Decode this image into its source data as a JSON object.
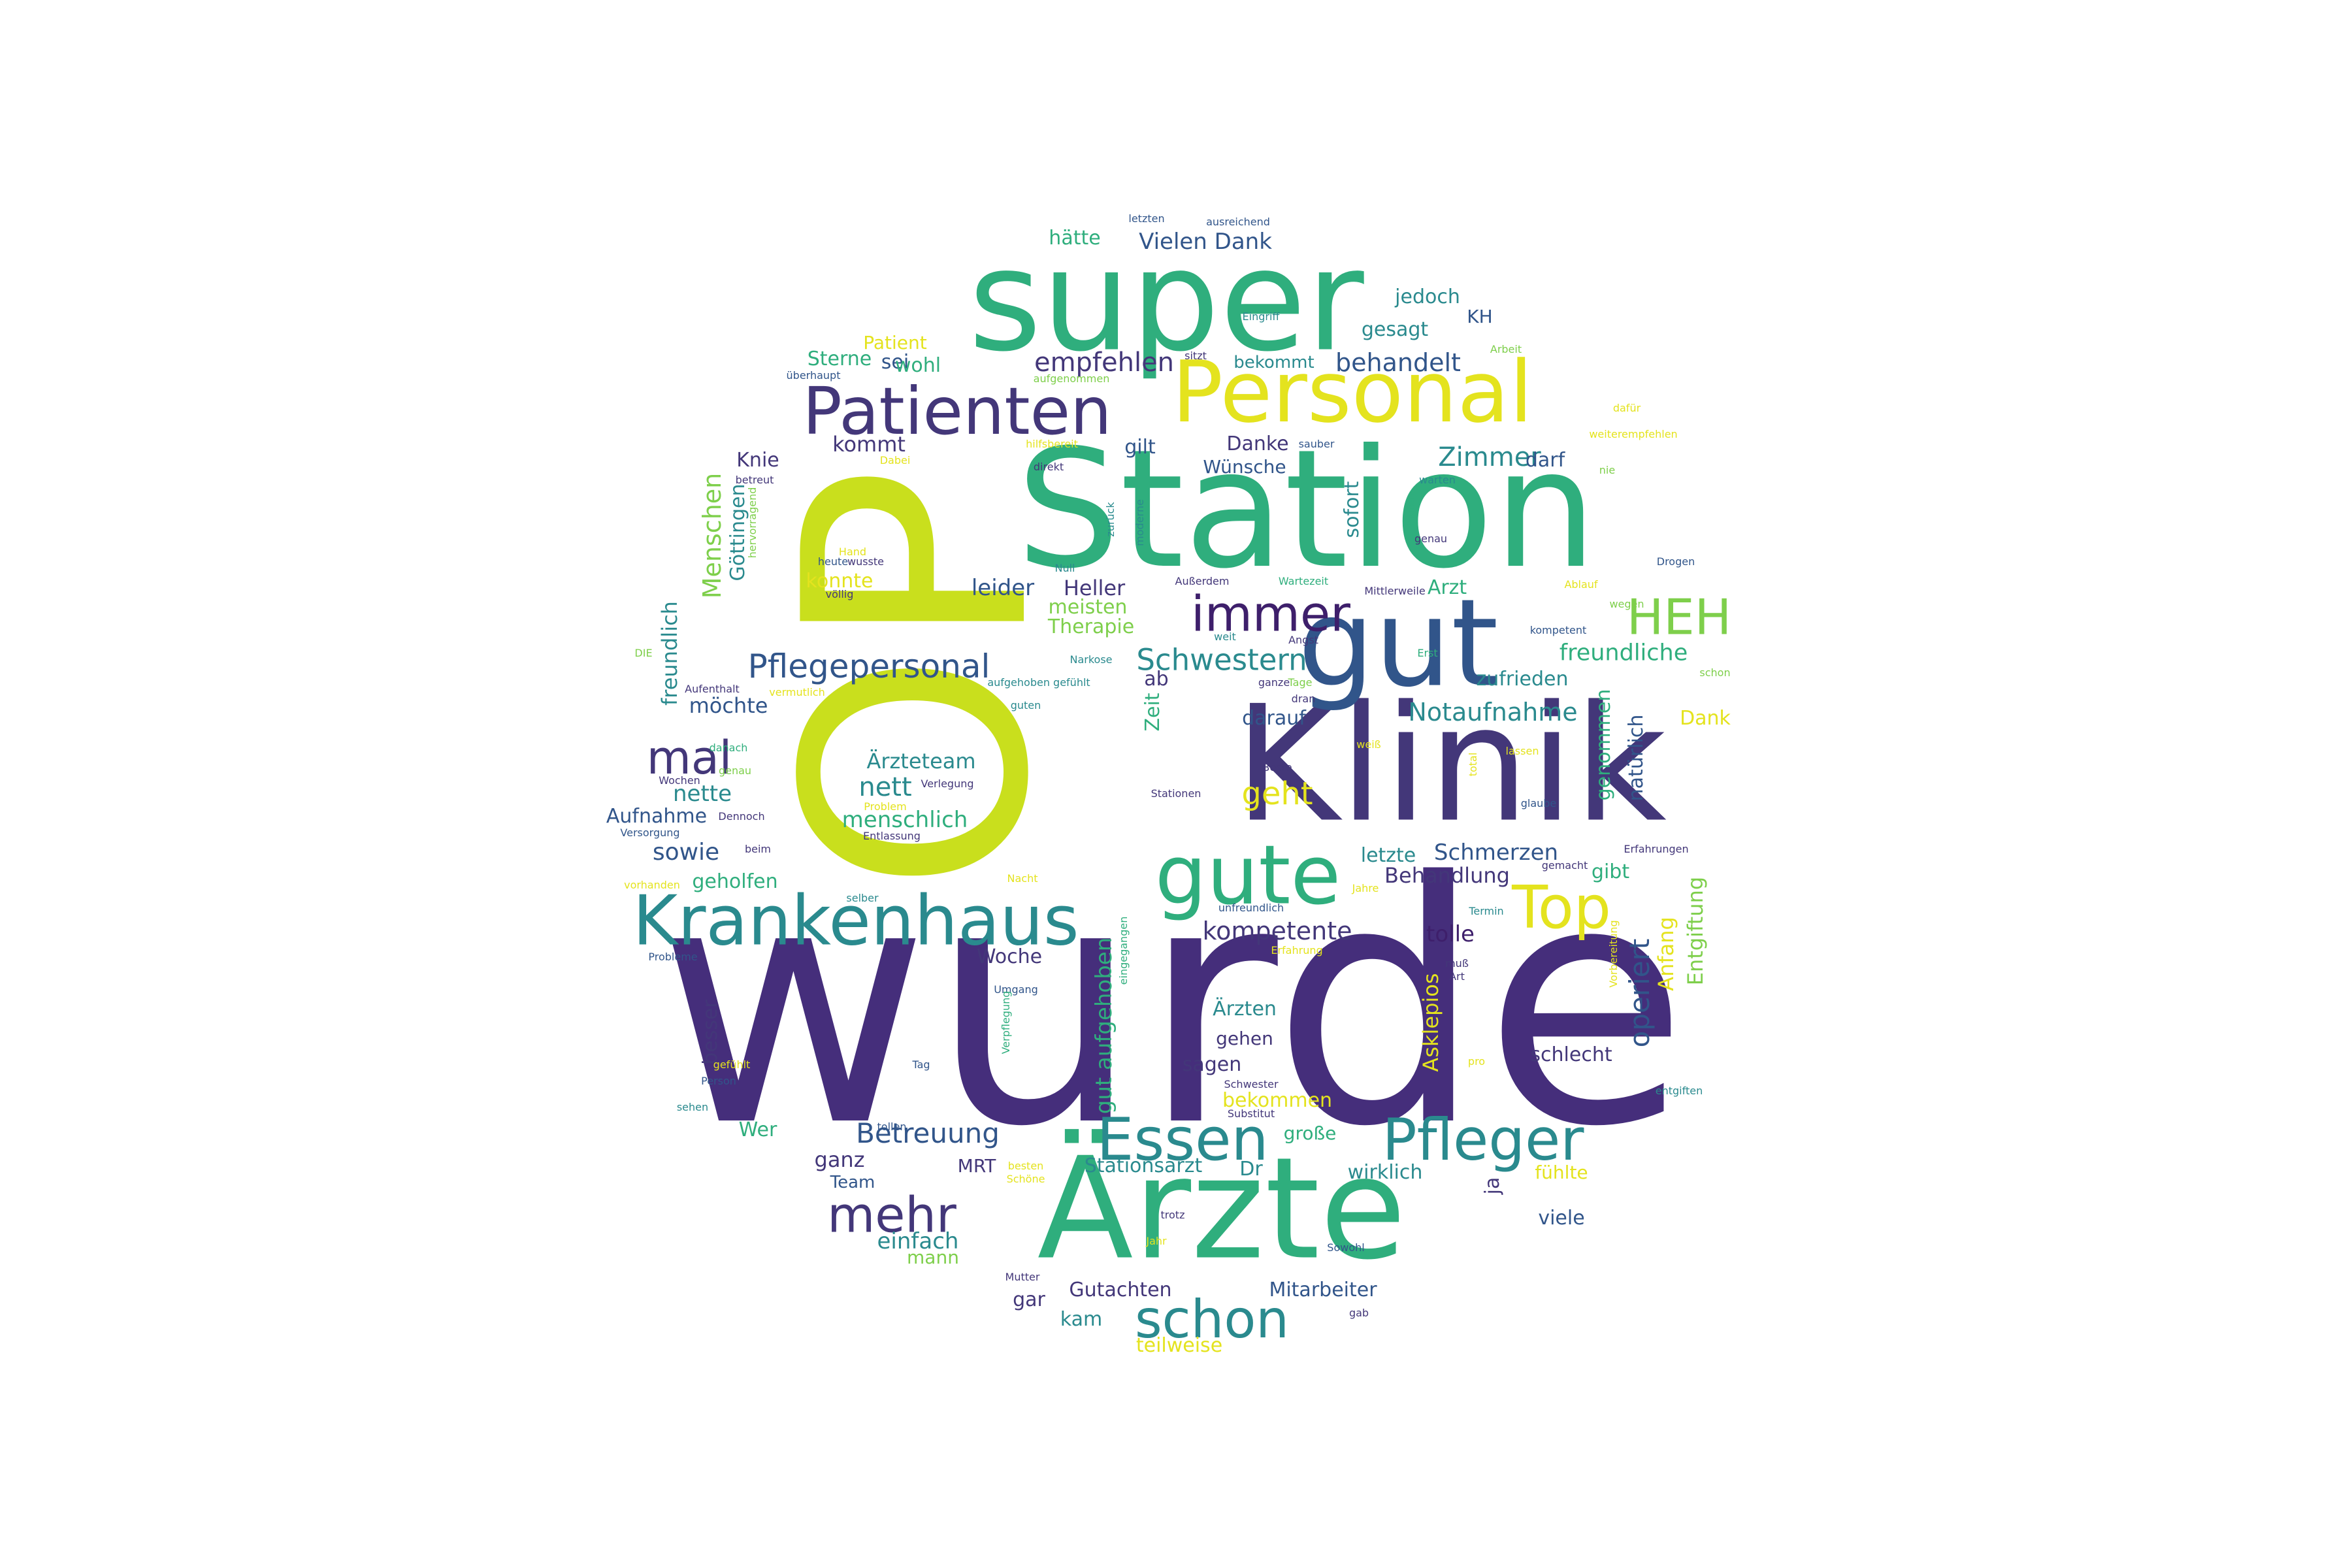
{
  "palette": {
    "indigo": "#46287a",
    "purple": "#3e2b7a",
    "slate": "#31558a",
    "teal": "#2a8a8e",
    "green": "#2fae7d",
    "lime": "#7ecf4b",
    "yellow": "#e4e31e",
    "chartreuse": "#c9df1d"
  },
  "words": [
    {
      "text": "wurde",
      "color": "#452e7b"
    },
    {
      "text": "OP",
      "color": "#c9df1d"
    },
    {
      "text": "Klinik",
      "color": "#433779"
    },
    {
      "text": "Station",
      "color": "#2fae7d"
    },
    {
      "text": "super",
      "color": "#2fae7d"
    },
    {
      "text": "Ärzte",
      "color": "#2fae7d"
    },
    {
      "text": "gut",
      "color": "#31558a"
    },
    {
      "text": "Personal",
      "color": "#e4e31e"
    },
    {
      "text": "Patienten",
      "color": "#433779"
    },
    {
      "text": "gute",
      "color": "#2fae7d"
    },
    {
      "text": "Krankenhaus",
      "color": "#2a8a8e"
    },
    {
      "text": "Essen",
      "color": "#2a8a8e"
    },
    {
      "text": "Pfleger",
      "color": "#2a8a8e"
    },
    {
      "text": "immer",
      "color": "#3e1f6b"
    },
    {
      "text": "HEH",
      "color": "#7ecf4b"
    },
    {
      "text": "mal",
      "color": "#433779"
    },
    {
      "text": "Top",
      "color": "#e4e31e"
    },
    {
      "text": "schon",
      "color": "#2a8a8e"
    },
    {
      "text": "mehr",
      "color": "#433779"
    },
    {
      "text": "Pflegepersonal",
      "color": "#31558a"
    },
    {
      "text": "Schwestern",
      "color": "#2a8a8e"
    },
    {
      "text": "empfehlen",
      "color": "#433779"
    },
    {
      "text": "behandelt",
      "color": "#31558a"
    },
    {
      "text": "Betreuung",
      "color": "#31558a"
    },
    {
      "text": "operiert",
      "color": "#31558a"
    },
    {
      "text": "Zimmer",
      "color": "#2a8a8e"
    },
    {
      "text": "geht",
      "color": "#e4e31e"
    },
    {
      "text": "nett",
      "color": "#2a8a8e"
    },
    {
      "text": "Notaufnahme",
      "color": "#2a8a8e"
    },
    {
      "text": "Menschen",
      "color": "#7ecf4b"
    },
    {
      "text": "kompetente",
      "color": "#433779"
    },
    {
      "text": "Vielen Dank",
      "color": "#31558a"
    },
    {
      "text": "freundliche",
      "color": "#2fae7d"
    },
    {
      "text": "menschlich",
      "color": "#2fae7d"
    },
    {
      "text": "Schmerzen",
      "color": "#31558a"
    },
    {
      "text": "Behandlung",
      "color": "#433779"
    },
    {
      "text": "Ärzteteam",
      "color": "#2a8a8e"
    },
    {
      "text": "gut aufgehoben",
      "color": "#2fae7d"
    },
    {
      "text": "freundlich",
      "color": "#2a8a8e"
    },
    {
      "text": "Göttingen",
      "color": "#2a8a8e"
    },
    {
      "text": "natürlich",
      "color": "#31558a"
    },
    {
      "text": "genommen",
      "color": "#2fae7d"
    },
    {
      "text": "zufrieden",
      "color": "#2a8a8e"
    },
    {
      "text": "Stationsarzt",
      "color": "#2a8a8e"
    },
    {
      "text": "Gutachten",
      "color": "#433779"
    },
    {
      "text": "Mitarbeiter",
      "color": "#31558a"
    },
    {
      "text": "teilweise",
      "color": "#e4e31e"
    },
    {
      "text": "wirklich",
      "color": "#2a8a8e"
    },
    {
      "text": "Asklepios",
      "color": "#e4e31e"
    },
    {
      "text": "Anfang",
      "color": "#e4e31e"
    },
    {
      "text": "Entgiftung",
      "color": "#7ecf4b"
    },
    {
      "text": "Aufnahme",
      "color": "#31558a"
    },
    {
      "text": "geholfen",
      "color": "#2fae7d"
    },
    {
      "text": "sowie",
      "color": "#31558a"
    },
    {
      "text": "nette",
      "color": "#2a8a8e"
    },
    {
      "text": "möchte",
      "color": "#31558a"
    },
    {
      "text": "leider",
      "color": "#31558a"
    },
    {
      "text": "Heller",
      "color": "#433779"
    },
    {
      "text": "meisten",
      "color": "#7ecf4b"
    },
    {
      "text": "Therapie",
      "color": "#7ecf4b"
    },
    {
      "text": "konnte",
      "color": "#e4e31e"
    },
    {
      "text": "Knie",
      "color": "#433779"
    },
    {
      "text": "kommt",
      "color": "#433779"
    },
    {
      "text": "gilt",
      "color": "#31558a"
    },
    {
      "text": "Danke",
      "color": "#433779"
    },
    {
      "text": "Wünsche",
      "color": "#31558a"
    },
    {
      "text": "sofort",
      "color": "#2a8a8e"
    },
    {
      "text": "darf",
      "color": "#31558a"
    },
    {
      "text": "Arzt",
      "color": "#2fae7d"
    },
    {
      "text": "jedoch",
      "color": "#2a8a8e"
    },
    {
      "text": "KH",
      "color": "#31558a"
    },
    {
      "text": "gesagt",
      "color": "#2a8a8e"
    },
    {
      "text": "hätte",
      "color": "#2fae7d"
    },
    {
      "text": "sei",
      "color": "#31558a"
    },
    {
      "text": "wohl",
      "color": "#2fae7d"
    },
    {
      "text": "Sterne",
      "color": "#2fae7d"
    },
    {
      "text": "Patient",
      "color": "#e4e31e"
    },
    {
      "text": "bekommt",
      "color": "#2a8a8e"
    },
    {
      "text": "ab",
      "color": "#433779"
    },
    {
      "text": "darauf",
      "color": "#31558a"
    },
    {
      "text": "Dank",
      "color": "#e4e31e"
    },
    {
      "text": "Zeit",
      "color": "#2fae7d"
    },
    {
      "text": "letzte",
      "color": "#2a8a8e"
    },
    {
      "text": "gibt",
      "color": "#2fae7d"
    },
    {
      "text": "tolle",
      "color": "#3e1f6b"
    },
    {
      "text": "Woche",
      "color": "#433779"
    },
    {
      "text": "Ärzten",
      "color": "#2a8a8e"
    },
    {
      "text": "gehen",
      "color": "#433779"
    },
    {
      "text": "sagen",
      "color": "#433779"
    },
    {
      "text": "bekommen",
      "color": "#e4e31e"
    },
    {
      "text": "schlecht",
      "color": "#433779"
    },
    {
      "text": "große",
      "color": "#2fae7d"
    },
    {
      "text": "fühlte",
      "color": "#e4e31e"
    },
    {
      "text": "ja",
      "color": "#433779"
    },
    {
      "text": "viele",
      "color": "#31558a"
    },
    {
      "text": "besser",
      "color": "#433779"
    },
    {
      "text": "Wer",
      "color": "#2fae7d"
    },
    {
      "text": "ganz",
      "color": "#433779"
    },
    {
      "text": "Team",
      "color": "#31558a"
    },
    {
      "text": "MRT",
      "color": "#433779"
    },
    {
      "text": "Dr",
      "color": "#2a8a8e"
    },
    {
      "text": "einfach",
      "color": "#2a8a8e"
    },
    {
      "text": "mann",
      "color": "#7ecf4b"
    },
    {
      "text": "gar",
      "color": "#433779"
    },
    {
      "text": "kam",
      "color": "#2a8a8e"
    },
    {
      "text": "letzten",
      "color": "#31558a"
    },
    {
      "text": "ausreichend",
      "color": "#31558a"
    },
    {
      "text": "Eingriff",
      "color": "#2a8a8e"
    },
    {
      "text": "Arbeit",
      "color": "#7ecf4b"
    },
    {
      "text": "sitzt",
      "color": "#433779"
    },
    {
      "text": "überhaupt",
      "color": "#31558a"
    },
    {
      "text": "aufgenommen",
      "color": "#7ecf4b"
    },
    {
      "text": "dafür",
      "color": "#e4e31e"
    },
    {
      "text": "weiterempfehlen",
      "color": "#e4e31e"
    },
    {
      "text": "hilfsbereit",
      "color": "#e4e31e"
    },
    {
      "text": "sauber",
      "color": "#31558a"
    },
    {
      "text": "Dabei",
      "color": "#e4e31e"
    },
    {
      "text": "direkt",
      "color": "#433779"
    },
    {
      "text": "warten",
      "color": "#2a8a8e"
    },
    {
      "text": "nie",
      "color": "#7ecf4b"
    },
    {
      "text": "betreut",
      "color": "#433779"
    },
    {
      "text": "hervorragend",
      "color": "#7ecf4b"
    },
    {
      "text": "zurück",
      "color": "#2a8a8e"
    },
    {
      "text": "moderne",
      "color": "#2a8a8e"
    },
    {
      "text": "laufen",
      "color": "#2fae7d"
    },
    {
      "text": "genau",
      "color": "#433779"
    },
    {
      "text": "Hand",
      "color": "#e4e31e"
    },
    {
      "text": "heute",
      "color": "#31558a"
    },
    {
      "text": "wusste",
      "color": "#433779"
    },
    {
      "text": "völlig",
      "color": "#433779"
    },
    {
      "text": "Null",
      "color": "#2a8a8e"
    },
    {
      "text": "Außerdem",
      "color": "#433779"
    },
    {
      "text": "Wartezeit",
      "color": "#2fae7d"
    },
    {
      "text": "Mittlerweile",
      "color": "#433779"
    },
    {
      "text": "Drogen",
      "color": "#31558a"
    },
    {
      "text": "Ablauf",
      "color": "#e4e31e"
    },
    {
      "text": "wegen",
      "color": "#7ecf4b"
    },
    {
      "text": "weit",
      "color": "#2a8a8e"
    },
    {
      "text": "Angst",
      "color": "#433779"
    },
    {
      "text": "kompetent",
      "color": "#31558a"
    },
    {
      "text": "schon",
      "color": "#7ecf4b"
    },
    {
      "text": "Narkose",
      "color": "#2a8a8e"
    },
    {
      "text": "Erst",
      "color": "#2fae7d"
    },
    {
      "text": "DIE",
      "color": "#7ecf4b"
    },
    {
      "text": "Aufenthalt",
      "color": "#433779"
    },
    {
      "text": "vermutlich",
      "color": "#e4e31e"
    },
    {
      "text": "aufgehoben gefühlt",
      "color": "#2a8a8e"
    },
    {
      "text": "ganze",
      "color": "#433779"
    },
    {
      "text": "Tage",
      "color": "#7ecf4b"
    },
    {
      "text": "dran",
      "color": "#433779"
    },
    {
      "text": "guten",
      "color": "#2a8a8e"
    },
    {
      "text": "weiß",
      "color": "#e4e31e"
    },
    {
      "text": "danach",
      "color": "#2fae7d"
    },
    {
      "text": "Beste",
      "color": "#433779"
    },
    {
      "text": "lassen",
      "color": "#e4e31e"
    },
    {
      "text": "total",
      "color": "#e4e31e"
    },
    {
      "text": "Wochen",
      "color": "#433779"
    },
    {
      "text": "genau",
      "color": "#7ecf4b"
    },
    {
      "text": "Verlegung",
      "color": "#433779"
    },
    {
      "text": "Stationen",
      "color": "#433779"
    },
    {
      "text": "glaube",
      "color": "#31558a"
    },
    {
      "text": "Problem",
      "color": "#e4e31e"
    },
    {
      "text": "Dennoch",
      "color": "#433779"
    },
    {
      "text": "Versorgung",
      "color": "#31558a"
    },
    {
      "text": "Entlassung",
      "color": "#433779"
    },
    {
      "text": "beim",
      "color": "#433779"
    },
    {
      "text": "gemacht",
      "color": "#433779"
    },
    {
      "text": "Erfahrungen",
      "color": "#433779"
    },
    {
      "text": "vorhanden",
      "color": "#e4e31e"
    },
    {
      "text": "Nacht",
      "color": "#e4e31e"
    },
    {
      "text": "selber",
      "color": "#2a8a8e"
    },
    {
      "text": "Jahre",
      "color": "#e4e31e"
    },
    {
      "text": "unfreundlich",
      "color": "#31558a"
    },
    {
      "text": "Termin",
      "color": "#2a8a8e"
    },
    {
      "text": "Vorbereitung",
      "color": "#e4e31e"
    },
    {
      "text": "Erfahrung",
      "color": "#e4e31e"
    },
    {
      "text": "eingegangen",
      "color": "#2fae7d"
    },
    {
      "text": "Probleme",
      "color": "#31558a"
    },
    {
      "text": "muß",
      "color": "#433779"
    },
    {
      "text": "Art",
      "color": "#433779"
    },
    {
      "text": "Umgang",
      "color": "#31558a"
    },
    {
      "text": "Verpflegung",
      "color": "#2fae7d"
    },
    {
      "text": "gefühlt",
      "color": "#e4e31e"
    },
    {
      "text": "Tag",
      "color": "#31558a"
    },
    {
      "text": "pro",
      "color": "#e4e31e"
    },
    {
      "text": "entgiften",
      "color": "#2a8a8e"
    },
    {
      "text": "Person",
      "color": "#31558a"
    },
    {
      "text": "Schwester",
      "color": "#433779"
    },
    {
      "text": "Substitut",
      "color": "#433779"
    },
    {
      "text": "sehen",
      "color": "#2a8a8e"
    },
    {
      "text": "tollen",
      "color": "#31558a"
    },
    {
      "text": "besten",
      "color": "#e4e31e"
    },
    {
      "text": "Schöne",
      "color": "#e4e31e"
    },
    {
      "text": "trotz",
      "color": "#433779"
    },
    {
      "text": "Jahr",
      "color": "#e4e31e"
    },
    {
      "text": "Sowohl",
      "color": "#31558a"
    },
    {
      "text": "Mutter",
      "color": "#433779"
    },
    {
      "text": "gab",
      "color": "#433779"
    }
  ]
}
